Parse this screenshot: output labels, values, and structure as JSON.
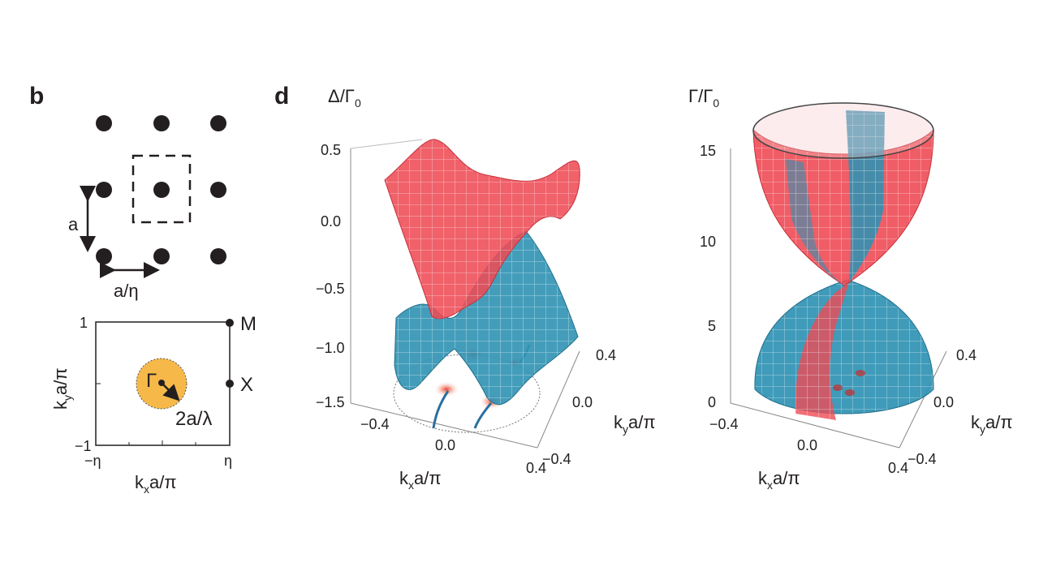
{
  "panels": {
    "b": {
      "label": "b",
      "lattice": {
        "spacing_label": "a",
        "period_label": "a/η"
      },
      "brillouin_zone": {
        "y_tick_top": "1",
        "y_tick_bottom": "−1",
        "x_tick_left": "−η",
        "x_tick_right": "η",
        "point_M": "M",
        "point_X": "Χ",
        "point_Gamma": "Γ",
        "radius_label": "2a/λ",
        "xlabel_main": "k",
        "xlabel_sub": "x",
        "xlabel_rest": "a/π",
        "ylabel_main": "k",
        "ylabel_sub": "y",
        "ylabel_rest": "a/π",
        "circle_color": "#f6b949"
      }
    },
    "d": {
      "label": "d",
      "left_plot": {
        "zlabel_main": "Δ/Γ",
        "zlabel_sub": "0",
        "z_ticks": [
          "0.5",
          "0.0",
          "−0.5",
          "−1.0",
          "−1.5"
        ],
        "kx_ticks": [
          "−0.4",
          "0.0",
          "0.4"
        ],
        "ky_ticks": [
          "0.4",
          "0.0",
          "−0.4"
        ],
        "xlabel_main": "k",
        "xlabel_sub": "x",
        "xlabel_rest": "a/π",
        "ylabel_main": "k",
        "ylabel_sub": "y",
        "ylabel_rest": "a/π"
      },
      "right_plot": {
        "zlabel_main": "Γ/Γ",
        "zlabel_sub": "0",
        "z_ticks": [
          "15",
          "10",
          "5",
          "0"
        ],
        "kx_ticks": [
          "−0.4",
          "0.0",
          "0.4"
        ],
        "ky_ticks": [
          "0.4",
          "0.0",
          "−0.4"
        ],
        "xlabel_main": "k",
        "xlabel_sub": "x",
        "xlabel_rest": "a/π",
        "ylabel_main": "k",
        "ylabel_sub": "y",
        "ylabel_rest": "a/π"
      },
      "colors": {
        "upper_band": "#ee3f48",
        "lower_band": "#2a8fb0",
        "mesh": "#ffffff"
      }
    }
  }
}
